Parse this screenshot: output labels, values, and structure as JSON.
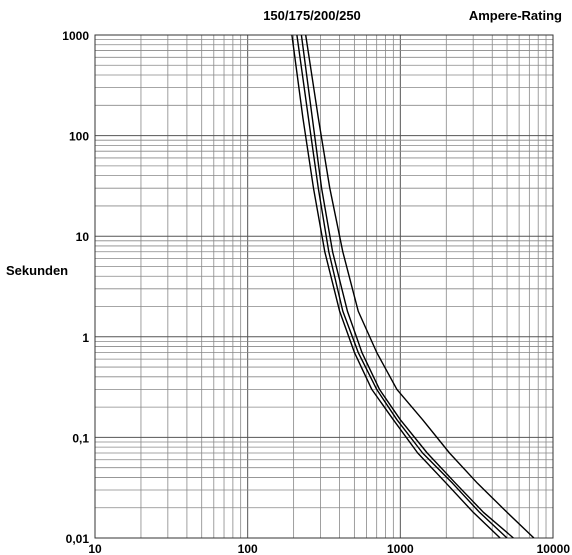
{
  "chart_data": {
    "type": "line",
    "title": "150/175/200/250",
    "legend_label": "Ampere-Rating",
    "ylabel": "Sekunden",
    "xlabel": "",
    "x_scale": "log",
    "y_scale": "log",
    "xlim": [
      10,
      10000
    ],
    "ylim": [
      0.01,
      1000
    ],
    "grid": true,
    "x_ticks": [
      {
        "value": 10,
        "label": "10"
      },
      {
        "value": 100,
        "label": "100"
      },
      {
        "value": 1000,
        "label": "1000"
      },
      {
        "value": 10000,
        "label": "10000"
      }
    ],
    "y_ticks": [
      {
        "value": 1000,
        "label": "1000"
      },
      {
        "value": 100,
        "label": "100"
      },
      {
        "value": 10,
        "label": "10"
      },
      {
        "value": 1,
        "label": "1"
      },
      {
        "value": 0.1,
        "label": "0,1"
      },
      {
        "value": 0.01,
        "label": "0,01"
      }
    ],
    "series": [
      {
        "x": [
          195,
          230,
          270,
          320,
          400,
          500,
          650,
          900,
          1300,
          2000,
          3000,
          4500
        ],
        "y": [
          1000,
          150,
          30,
          7,
          1.8,
          0.7,
          0.3,
          0.15,
          0.07,
          0.035,
          0.018,
          0.01
        ]
      },
      {
        "x": [
          210,
          250,
          290,
          340,
          420,
          530,
          700,
          950,
          1400,
          2200,
          3300,
          5000
        ],
        "y": [
          1000,
          150,
          30,
          7,
          1.8,
          0.7,
          0.3,
          0.15,
          0.07,
          0.035,
          0.018,
          0.01
        ]
      },
      {
        "x": [
          225,
          265,
          305,
          360,
          450,
          560,
          730,
          1000,
          1500,
          2300,
          3500,
          5500
        ],
        "y": [
          1000,
          150,
          30,
          7,
          1.8,
          0.7,
          0.3,
          0.15,
          0.07,
          0.035,
          0.018,
          0.01
        ]
      },
      {
        "x": [
          240,
          290,
          345,
          420,
          530,
          700,
          950,
          1400,
          2100,
          3200,
          5000,
          7500
        ],
        "y": [
          1000,
          150,
          30,
          7,
          1.8,
          0.7,
          0.3,
          0.15,
          0.07,
          0.035,
          0.018,
          0.01
        ]
      }
    ]
  }
}
